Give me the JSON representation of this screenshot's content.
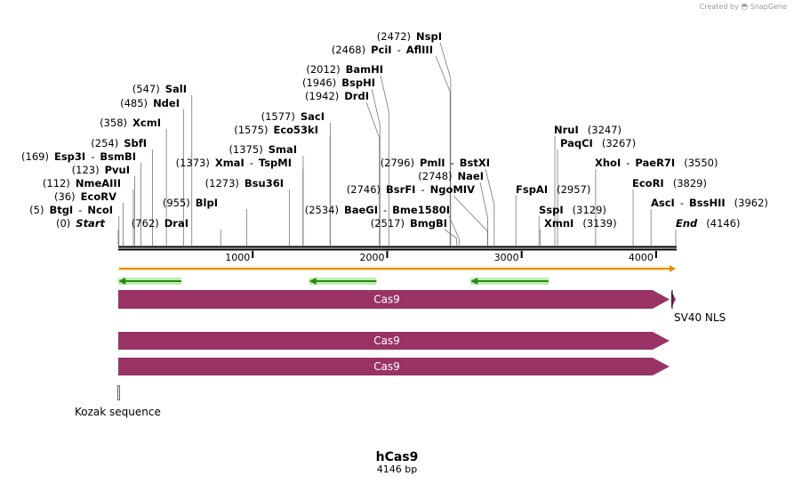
{
  "watermark": {
    "created_by": "Created by",
    "brand": "SnapGene"
  },
  "plasmid": {
    "name": "hCas9",
    "length_label": "4146 bp",
    "length": 4146
  },
  "ruler": {
    "ticks": [
      "1000",
      "2000",
      "3000",
      "4000"
    ]
  },
  "sites": [
    {
      "text": [
        [
          "(0)",
          "pos"
        ],
        [
          "Start",
          "it"
        ]
      ],
      "line": 0
    },
    {
      "text": [
        [
          "(5)",
          "pos"
        ],
        [
          "BtgI",
          "nm"
        ],
        [
          "-",
          "sep"
        ],
        [
          "NcoI",
          "nm"
        ]
      ],
      "line": 5
    },
    {
      "text": [
        [
          "(36)",
          "pos"
        ],
        [
          "EcoRV",
          "nm"
        ]
      ],
      "line": 36
    },
    {
      "text": [
        [
          "(112)",
          "pos"
        ],
        [
          "NmeAIII",
          "nm"
        ]
      ],
      "line": 112
    },
    {
      "text": [
        [
          "(123)",
          "pos"
        ],
        [
          "PvuI",
          "nm"
        ]
      ],
      "line": 123
    },
    {
      "text": [
        [
          "(169)",
          "pos"
        ],
        [
          "Esp3I",
          "nm"
        ],
        [
          "-",
          "sep"
        ],
        [
          "BsmBI",
          "nm"
        ]
      ],
      "line": 169
    },
    {
      "text": [
        [
          "(254)",
          "pos"
        ],
        [
          "SbfI",
          "nm"
        ]
      ],
      "line": 254
    },
    {
      "text": [
        [
          "(358)",
          "pos"
        ],
        [
          "XcmI",
          "nm"
        ]
      ],
      "line": 358
    },
    {
      "text": [
        [
          "(485)",
          "pos"
        ],
        [
          "NdeI",
          "nm"
        ]
      ],
      "line": 485
    },
    {
      "text": [
        [
          "(547)",
          "pos"
        ],
        [
          "SalI",
          "nm"
        ]
      ],
      "line": 547
    },
    {
      "text": [
        [
          "(762)",
          "pos"
        ],
        [
          "DraI",
          "nm"
        ]
      ],
      "line": 762
    },
    {
      "text": [
        [
          "(955)",
          "pos"
        ],
        [
          "BlpI",
          "nm"
        ]
      ],
      "line": 955
    },
    {
      "text": [
        [
          "(1273)",
          "pos"
        ],
        [
          "Bsu36I",
          "nm"
        ]
      ],
      "line": 1273
    },
    {
      "text": [
        [
          "(1373)",
          "pos"
        ],
        [
          "XmaI",
          "nm"
        ],
        [
          "-",
          "sep"
        ],
        [
          "TspMI",
          "nm"
        ]
      ],
      "line": 1373
    },
    {
      "text": [
        [
          "(1375)",
          "pos"
        ],
        [
          "SmaI",
          "nm"
        ]
      ],
      "line": 1375
    },
    {
      "text": [
        [
          "(1575)",
          "pos"
        ],
        [
          "Eco53kI",
          "nm"
        ]
      ],
      "line": 1575
    },
    {
      "text": [
        [
          "(1577)",
          "pos"
        ],
        [
          "SacI",
          "nm"
        ]
      ],
      "line": 1577
    },
    {
      "text": [
        [
          "(1942)",
          "pos"
        ],
        [
          "DrdI",
          "nm"
        ]
      ],
      "line": 1942
    },
    {
      "text": [
        [
          "(1946)",
          "pos"
        ],
        [
          "BspHI",
          "nm"
        ]
      ],
      "line": 1946
    },
    {
      "text": [
        [
          "(2012)",
          "pos"
        ],
        [
          "BamHI",
          "nm"
        ]
      ],
      "line": 2012
    },
    {
      "text": [
        [
          "(2534)",
          "pos"
        ],
        [
          "BaeGI",
          "nm"
        ],
        [
          "-",
          "sep"
        ],
        [
          "Bme1580I",
          "nm"
        ]
      ],
      "line": 2534
    },
    {
      "text": [
        [
          "(2517)",
          "pos"
        ],
        [
          "BmgBI",
          "nm"
        ]
      ],
      "line": 2517
    },
    {
      "text": [
        [
          "(2746)",
          "pos"
        ],
        [
          "BsrFI",
          "nm"
        ],
        [
          "-",
          "sep"
        ],
        [
          "NgoMIV",
          "nm"
        ]
      ],
      "line": 2746
    },
    {
      "text": [
        [
          "(2748)",
          "pos"
        ],
        [
          "NaeI",
          "nm"
        ]
      ],
      "line": 2748
    },
    {
      "text": [
        [
          "(2796)",
          "pos"
        ],
        [
          "PmlI",
          "nm"
        ],
        [
          "-",
          "sep"
        ],
        [
          "BstXI",
          "nm"
        ]
      ],
      "line": 2796
    },
    {
      "text": [
        [
          "(2468)",
          "pos"
        ],
        [
          "PciI",
          "nm"
        ],
        [
          "-",
          "sep"
        ],
        [
          "AflIII",
          "nm"
        ]
      ],
      "line": 2468
    },
    {
      "text": [
        [
          "(2472)",
          "pos"
        ],
        [
          "NspI",
          "nm"
        ]
      ],
      "line": 2472
    },
    {
      "text": [
        [
          "FspAI",
          "nm"
        ],
        [
          "(2957)",
          "pos"
        ]
      ],
      "line": 2957
    },
    {
      "text": [
        [
          "SspI",
          "nm"
        ],
        [
          "(3129)",
          "pos"
        ]
      ],
      "line": 3129
    },
    {
      "text": [
        [
          "XmnI",
          "nm"
        ],
        [
          "(3139)",
          "pos"
        ]
      ],
      "line": 3139
    },
    {
      "text": [
        [
          "NruI",
          "nm"
        ],
        [
          "(3247)",
          "pos"
        ]
      ],
      "line": 3247
    },
    {
      "text": [
        [
          "PaqCI",
          "nm"
        ],
        [
          "(3267)",
          "pos"
        ]
      ],
      "line": 3267
    },
    {
      "text": [
        [
          "XhoI",
          "nm"
        ],
        [
          "-",
          "sep"
        ],
        [
          "PaeR7I",
          "nm"
        ],
        [
          "(3550)",
          "pos"
        ]
      ],
      "line": 3550
    },
    {
      "text": [
        [
          "EcoRI",
          "nm"
        ],
        [
          "(3829)",
          "pos"
        ]
      ],
      "line": 3829
    },
    {
      "text": [
        [
          "AscI",
          "nm"
        ],
        [
          "-",
          "sep"
        ],
        [
          "BssHII",
          "nm"
        ],
        [
          "(3962)",
          "pos"
        ]
      ],
      "line": 3962
    },
    {
      "text": [
        [
          "End",
          "it"
        ],
        [
          "(4146)",
          "pos"
        ]
      ],
      "line": 4146
    }
  ],
  "features": {
    "cas9_main": {
      "label": "Cas9",
      "start": 1,
      "end": 4104
    },
    "sv40_nls": {
      "label": "SV40 NLS",
      "start": 4104,
      "end": 4125
    },
    "cas9_track2": {
      "label": "Cas9"
    },
    "cas9_track3": {
      "label": "Cas9"
    },
    "kozak": {
      "label": "Kozak sequence"
    },
    "orfs": [
      {
        "start": 1,
        "end": 470
      },
      {
        "start": 1420,
        "end": 1920
      },
      {
        "start": 2620,
        "end": 3200
      }
    ]
  },
  "colors": {
    "feature": "#993366",
    "orf": "#2a8a12",
    "orf_glow": "#bdeeb4",
    "orange": "#e88a10",
    "backbone": "#000000"
  }
}
